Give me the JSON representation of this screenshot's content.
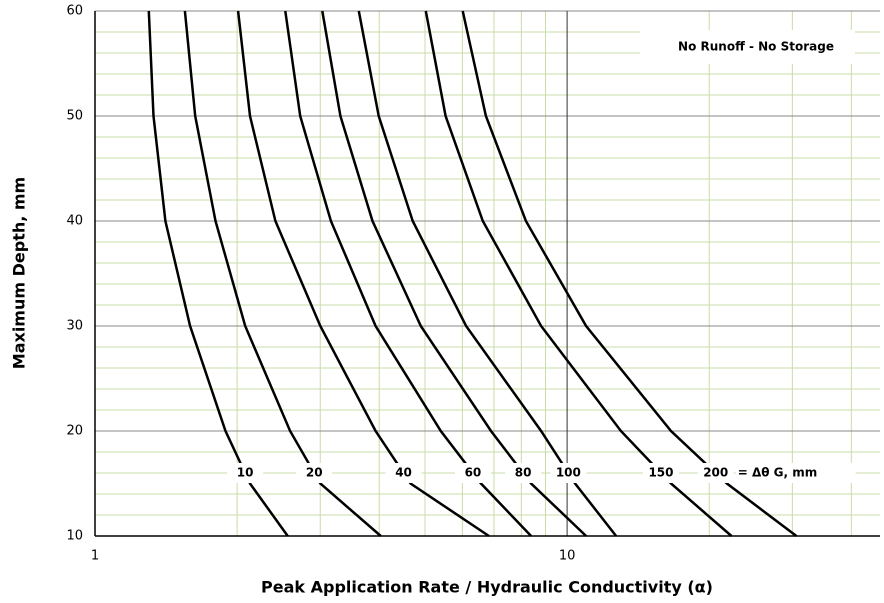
{
  "chart_data": {
    "type": "line",
    "x_label": "Peak Application Rate  /  Hydraulic Conductivity  (α)",
    "y_label": "Maximum Depth, mm",
    "annotation": "No Runoff - No Storage",
    "series_note": "= Δθ  G, mm",
    "xlog": true,
    "grid": true,
    "xlim": [
      1,
      46
    ],
    "ylim": [
      10,
      60
    ],
    "xticks": [
      1,
      10
    ],
    "yticks": [
      10,
      20,
      30,
      40,
      50,
      60
    ],
    "series": [
      {
        "name": "10",
        "color": "#000000",
        "x": [
          1.3,
          1.33,
          1.41,
          1.59,
          1.89,
          2.13,
          2.56
        ],
        "values": [
          60,
          50,
          40,
          30,
          20,
          15,
          10
        ]
      },
      {
        "name": "20",
        "color": "#000000",
        "x": [
          1.55,
          1.63,
          1.8,
          2.08,
          2.59,
          3.0,
          4.03
        ],
        "values": [
          60,
          50,
          40,
          30,
          20,
          15,
          10
        ]
      },
      {
        "name": "40",
        "color": "#000000",
        "x": [
          2.01,
          2.13,
          2.41,
          3.0,
          3.93,
          4.66,
          6.83
        ],
        "values": [
          60,
          50,
          40,
          30,
          20,
          15,
          10
        ]
      },
      {
        "name": "60",
        "color": "#000000",
        "x": [
          2.53,
          2.72,
          3.16,
          3.93,
          5.4,
          6.57,
          8.39
        ],
        "values": [
          60,
          50,
          40,
          30,
          20,
          15,
          10
        ]
      },
      {
        "name": "80",
        "color": "#000000",
        "x": [
          3.03,
          3.31,
          3.87,
          4.9,
          6.9,
          8.39,
          10.97
        ],
        "values": [
          60,
          50,
          40,
          30,
          20,
          15,
          10
        ]
      },
      {
        "name": "100",
        "color": "#000000",
        "x": [
          3.62,
          3.99,
          4.71,
          6.11,
          8.81,
          10.4,
          12.7
        ],
        "values": [
          60,
          50,
          40,
          30,
          20,
          15,
          10
        ]
      },
      {
        "name": "150",
        "color": "#000000",
        "x": [
          5.02,
          5.53,
          6.63,
          8.81,
          13.0,
          16.6,
          22.3
        ],
        "values": [
          60,
          50,
          40,
          30,
          20,
          15,
          10
        ]
      },
      {
        "name": "200",
        "color": "#000000",
        "x": [
          6.01,
          6.73,
          8.18,
          10.97,
          16.6,
          21.8,
          30.6
        ],
        "values": [
          60,
          50,
          40,
          30,
          20,
          15,
          10
        ]
      }
    ]
  }
}
